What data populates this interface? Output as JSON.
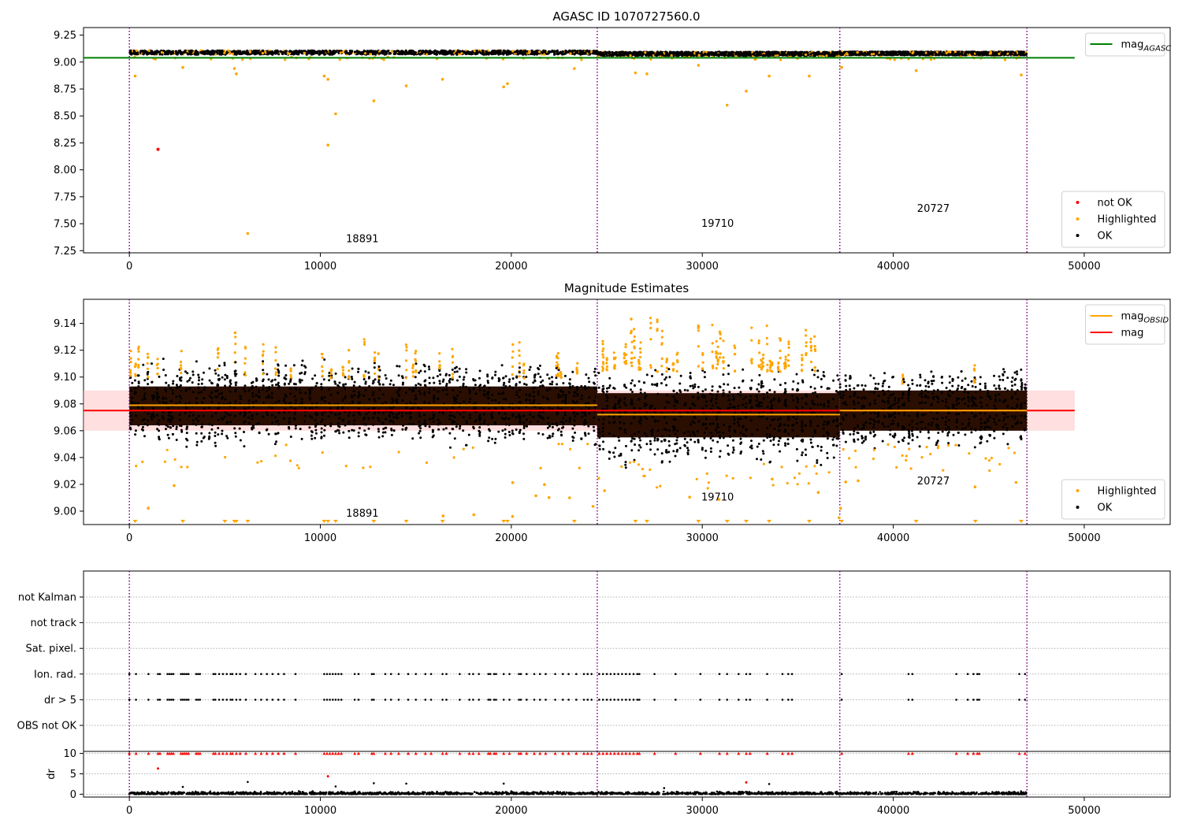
{
  "chart_data": [
    {
      "id": "agasc",
      "type": "scatter",
      "title": "AGASC ID 1070727560.0",
      "xlim": [
        -2400,
        54500
      ],
      "ylim": [
        7.23,
        9.32
      ],
      "x_ticks": [
        0,
        10000,
        20000,
        30000,
        40000,
        50000
      ],
      "x_tick_labels": [
        "0",
        "10000",
        "20000",
        "30000",
        "40000",
        "50000"
      ],
      "y_ticks": [
        7.25,
        7.5,
        7.75,
        8.0,
        8.25,
        8.5,
        8.75,
        9.0,
        9.25
      ],
      "y_tick_labels": [
        "7.25",
        "7.50",
        "7.75",
        "8.00",
        "8.25",
        "8.50",
        "8.75",
        "9.00",
        "9.25"
      ],
      "obsid_boundaries": [
        0,
        24500,
        37200,
        47000
      ],
      "hlines": [
        {
          "name": "mag_AGASC",
          "y": 9.04,
          "x": [
            -2400,
            49500
          ],
          "color": "#008000"
        }
      ],
      "obs_labels": [
        {
          "text": "18891",
          "x": 12200,
          "y": 7.33
        },
        {
          "text": "19710",
          "x": 30800,
          "y": 7.47
        },
        {
          "text": "20727",
          "x": 42100,
          "y": 7.61
        }
      ],
      "band_segments": [
        {
          "x": [
            0,
            24500
          ],
          "center": 9.088,
          "spread": 0.018
        },
        {
          "x": [
            24500,
            37200
          ],
          "center": 9.076,
          "spread": 0.018
        },
        {
          "x": [
            37200,
            47000
          ],
          "center": 9.08,
          "spread": 0.016
        }
      ],
      "not_ok_points": [
        {
          "x": 1500,
          "y": 8.19
        }
      ],
      "highlighted_outliers": [
        {
          "x": 300,
          "y": 8.87
        },
        {
          "x": 2800,
          "y": 8.95
        },
        {
          "x": 5500,
          "y": 8.94
        },
        {
          "x": 5600,
          "y": 8.89
        },
        {
          "x": 6200,
          "y": 7.41
        },
        {
          "x": 10200,
          "y": 8.87
        },
        {
          "x": 10400,
          "y": 8.84
        },
        {
          "x": 10400,
          "y": 8.23
        },
        {
          "x": 10800,
          "y": 8.52
        },
        {
          "x": 12800,
          "y": 8.64
        },
        {
          "x": 14500,
          "y": 8.78
        },
        {
          "x": 16400,
          "y": 8.84
        },
        {
          "x": 19600,
          "y": 8.77
        },
        {
          "x": 19800,
          "y": 8.8
        },
        {
          "x": 23300,
          "y": 8.94
        },
        {
          "x": 26500,
          "y": 8.9
        },
        {
          "x": 27100,
          "y": 8.89
        },
        {
          "x": 29800,
          "y": 8.97
        },
        {
          "x": 31300,
          "y": 8.6
        },
        {
          "x": 32300,
          "y": 8.73
        },
        {
          "x": 33500,
          "y": 8.87
        },
        {
          "x": 35600,
          "y": 8.87
        },
        {
          "x": 37300,
          "y": 8.95
        },
        {
          "x": 41200,
          "y": 8.92
        },
        {
          "x": 46700,
          "y": 8.88
        }
      ],
      "legends": [
        {
          "placement": "upper-right",
          "entries": [
            {
              "kind": "line",
              "color": "#008000",
              "label": "mag",
              "sub": "AGASC"
            }
          ]
        },
        {
          "placement": "lower-right",
          "entries": [
            {
              "kind": "dot",
              "color": "#ff0000",
              "label": "not OK",
              "sub": ""
            },
            {
              "kind": "dot",
              "color": "#ffa500",
              "label": "Highlighted",
              "sub": ""
            },
            {
              "kind": "dot",
              "color": "#000000",
              "label": "OK",
              "sub": ""
            }
          ]
        }
      ]
    },
    {
      "id": "estimates",
      "type": "scatter",
      "title": "Magnitude Estimates",
      "xlim": [
        -2400,
        54500
      ],
      "ylim": [
        8.99,
        9.158
      ],
      "x_ticks": [
        0,
        10000,
        20000,
        30000,
        40000,
        50000
      ],
      "x_tick_labels": [
        "0",
        "10000",
        "20000",
        "30000",
        "40000",
        "50000"
      ],
      "y_ticks": [
        9.0,
        9.02,
        9.04,
        9.06,
        9.08,
        9.1,
        9.12,
        9.14
      ],
      "y_tick_labels": [
        "9.00",
        "9.02",
        "9.04",
        "9.06",
        "9.08",
        "9.10",
        "9.12",
        "9.14"
      ],
      "obsid_boundaries": [
        0,
        24500,
        37200,
        47000
      ],
      "mag": 9.075,
      "mag_band": [
        9.06,
        9.09
      ],
      "mag_xrange": [
        -2400,
        49500
      ],
      "obsid_mags": [
        {
          "x": [
            0,
            24500
          ],
          "y": 9.079
        },
        {
          "x": [
            24500,
            37200
          ],
          "y": 9.072
        },
        {
          "x": [
            37200,
            47000
          ],
          "y": 9.075
        }
      ],
      "obs_segments": [
        {
          "x": [
            0,
            24500
          ],
          "core": [
            9.064,
            9.093
          ],
          "ok_range": [
            9.047,
            9.114
          ],
          "hi_range": [
            9.105,
            9.135
          ],
          "hi_density": 0.22
        },
        {
          "x": [
            24500,
            37200
          ],
          "core": [
            9.055,
            9.088
          ],
          "ok_range": [
            9.032,
            9.11
          ],
          "hi_range": [
            9.11,
            9.148
          ],
          "hi_density": 0.5
        },
        {
          "x": [
            37200,
            47000
          ],
          "core": [
            9.06,
            9.09
          ],
          "ok_range": [
            9.045,
            9.108
          ],
          "hi_range": [
            9.1,
            9.112
          ],
          "hi_density": 0.06
        }
      ],
      "obs_labels": [
        {
          "text": "18891",
          "x": 12200,
          "y": 8.996
        },
        {
          "text": "19710",
          "x": 30800,
          "y": 9.008
        },
        {
          "text": "20727",
          "x": 42100,
          "y": 9.02
        }
      ],
      "clipped_low_x": [
        300,
        2800,
        5000,
        5500,
        5600,
        6200,
        10200,
        10400,
        10800,
        12800,
        14500,
        16400,
        19600,
        19800,
        23300,
        26500,
        27100,
        29800,
        31300,
        32300,
        33500,
        35600,
        37300,
        41200,
        44300,
        46700
      ],
      "legends": [
        {
          "placement": "upper-right",
          "entries": [
            {
              "kind": "line",
              "color": "#ffa500",
              "label": "mag",
              "sub": "OBSID"
            },
            {
              "kind": "line",
              "color": "#ff0000",
              "label": "mag",
              "sub": ""
            }
          ]
        },
        {
          "placement": "lower-right",
          "entries": [
            {
              "kind": "dot",
              "color": "#ffa500",
              "label": "Highlighted",
              "sub": ""
            },
            {
              "kind": "dot",
              "color": "#000000",
              "label": "OK",
              "sub": ""
            }
          ]
        }
      ]
    },
    {
      "id": "flags",
      "type": "scatter",
      "title": "",
      "xlim": [
        -2400,
        54500
      ],
      "obsid_boundaries": [
        0,
        24500,
        37200,
        47000
      ],
      "categories": [
        "not Kalman",
        "not track",
        "Sat. pixel.",
        "Ion. rad.",
        "dr > 5",
        "OBS not OK"
      ],
      "flagged_rows": [
        "Ion. rad.",
        "dr > 5"
      ],
      "flag_x": [
        0,
        350,
        1000,
        1500,
        1600,
        2000,
        2100,
        2200,
        2300,
        2700,
        2800,
        2900,
        3000,
        3100,
        3500,
        3600,
        3700,
        4400,
        4500,
        4700,
        4900,
        5100,
        5300,
        5400,
        5600,
        5800,
        6100,
        6600,
        6900,
        7200,
        7500,
        7800,
        8100,
        8700,
        10200,
        10350,
        10500,
        10650,
        10800,
        10950,
        11100,
        11800,
        12000,
        12700,
        12800,
        13400,
        13700,
        14100,
        14600,
        15000,
        15500,
        15800,
        16400,
        16600,
        17300,
        17800,
        18000,
        18300,
        18800,
        18900,
        19100,
        19200,
        19600,
        19900,
        20400,
        20500,
        20800,
        21200,
        21500,
        21800,
        22300,
        22700,
        23000,
        23400,
        23800,
        24000,
        24200,
        24600,
        24800,
        25000,
        25200,
        25400,
        25600,
        25800,
        26000,
        26200,
        26400,
        26600,
        26700,
        27500,
        28600,
        29900,
        30900,
        31300,
        31900,
        32300,
        32500,
        33400,
        34200,
        34500,
        34700,
        37300,
        40800,
        41000,
        43300,
        43900,
        44200,
        44400,
        44500,
        46600,
        46900
      ]
    },
    {
      "id": "dr",
      "type": "scatter",
      "title": "",
      "ylabel": "dr",
      "xlim": [
        -2400,
        54500
      ],
      "ylim": [
        -0.7,
        10.5
      ],
      "x_ticks": [
        0,
        10000,
        20000,
        30000,
        40000,
        50000
      ],
      "x_tick_labels": [
        "0",
        "10000",
        "20000",
        "30000",
        "40000",
        "50000"
      ],
      "y_ticks": [
        0,
        5,
        10
      ],
      "y_tick_labels": [
        "0",
        "5",
        "10"
      ],
      "obsid_boundaries": [
        0,
        24500,
        37200,
        47000
      ],
      "cap_value": 10,
      "red_points": [
        {
          "x": 1500,
          "y": 6.3
        },
        {
          "x": 10400,
          "y": 4.4
        },
        {
          "x": 32300,
          "y": 2.9
        }
      ],
      "black_spikes": [
        {
          "x": 6200,
          "y": 3.0
        },
        {
          "x": 10800,
          "y": 1.9
        },
        {
          "x": 12800,
          "y": 2.7
        },
        {
          "x": 14500,
          "y": 2.6
        },
        {
          "x": 19600,
          "y": 2.6
        },
        {
          "x": 28000,
          "y": 1.5
        },
        {
          "x": 33500,
          "y": 2.5
        },
        {
          "x": 2800,
          "y": 1.8
        }
      ]
    }
  ]
}
